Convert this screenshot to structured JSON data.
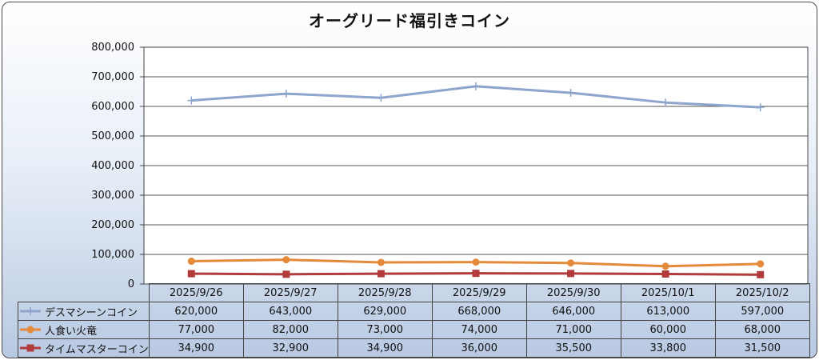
{
  "chart_data": {
    "type": "line",
    "title": "オーグリード福引きコイン",
    "categories": [
      "2025/9/26",
      "2025/9/27",
      "2025/9/28",
      "2025/9/29",
      "2025/9/30",
      "2025/10/1",
      "2025/10/2"
    ],
    "y_ticks": [
      "0",
      "100,000",
      "200,000",
      "300,000",
      "400,000",
      "500,000",
      "600,000",
      "700,000",
      "800,000"
    ],
    "ylim": [
      0,
      800000
    ],
    "grid": true,
    "legend": "data-table",
    "series": [
      {
        "name": "デスマシーンコイン",
        "color": "#8ea5cd",
        "marker": "plus",
        "values": [
          620000,
          643000,
          629000,
          668000,
          646000,
          613000,
          597000
        ],
        "labels": [
          "620,000",
          "643,000",
          "629,000",
          "668,000",
          "646,000",
          "613,000",
          "597,000"
        ]
      },
      {
        "name": "人食い火竜",
        "color": "#e48a3a",
        "marker": "circle",
        "values": [
          77000,
          82000,
          73000,
          74000,
          71000,
          60000,
          68000
        ],
        "labels": [
          "77,000",
          "82,000",
          "73,000",
          "74,000",
          "71,000",
          "60,000",
          "68,000"
        ]
      },
      {
        "name": "タイムマスターコイン",
        "color": "#b23c3c",
        "marker": "square",
        "values": [
          34900,
          32900,
          34900,
          36000,
          35500,
          33800,
          31500
        ],
        "labels": [
          "34,900",
          "32,900",
          "34,900",
          "36,000",
          "35,500",
          "33,800",
          "31,500"
        ]
      }
    ]
  }
}
